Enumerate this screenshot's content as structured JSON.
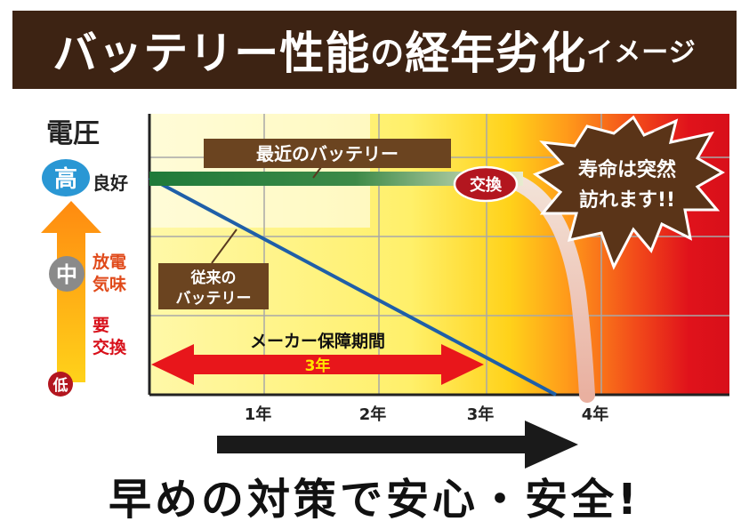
{
  "title": {
    "main": "バッテリー性能",
    "no": "の",
    "main2": "経年劣化",
    "suffix": "イメージ"
  },
  "yaxis": {
    "label": "電圧",
    "high": "高",
    "high_desc": "良好",
    "mid": "中",
    "mid_desc_1": "放電",
    "mid_desc_2": "気味",
    "low_desc_1": "要",
    "low_desc_2": "交換",
    "low": "低"
  },
  "labels": {
    "recent_battery": "最近のバッテリー",
    "old_battery_1": "従来の",
    "old_battery_2": "バッテリー",
    "replace": "交換",
    "warranty": "メーカー保障期間",
    "warranty_years": "3年",
    "callout_1": "寿命は突然",
    "callout_2": "訪れます!!"
  },
  "footer": "早めの対策で安心・安全!",
  "colors": {
    "title_bg": "#3d2313",
    "label_bg": "#6b4420",
    "recent_line": "#1f7a3a",
    "old_line": "#1f5fa8",
    "warranty_arrow": "#e8161b",
    "replace_badge": "#b3161f",
    "zone_good": "#fff8a8",
    "zone_danger": "#e0121b"
  },
  "chart_data": {
    "type": "line",
    "title": "バッテリー性能の経年劣化イメージ",
    "xlabel": "",
    "ylabel": "電圧",
    "x_ticks": [
      "1年",
      "2年",
      "3年",
      "4年"
    ],
    "xlim": [
      0,
      5
    ],
    "y_levels": [
      "低",
      "中",
      "高"
    ],
    "ylim": [
      0,
      3
    ],
    "series": [
      {
        "name": "最近のバッテリー",
        "points": [
          [
            0,
            2.6
          ],
          [
            2.6,
            2.6
          ],
          [
            3.1,
            2.45
          ],
          [
            3.5,
            1.5
          ],
          [
            3.8,
            0
          ]
        ]
      },
      {
        "name": "従来のバッテリー",
        "points": [
          [
            0,
            2.6
          ],
          [
            3.6,
            0
          ]
        ]
      }
    ],
    "annotations": [
      {
        "text": "メーカー保障期間 3年",
        "x_range": [
          0,
          3
        ]
      },
      {
        "text": "交換",
        "x": 2.85
      },
      {
        "text": "寿命は突然 訪れます!!",
        "x": 4.5
      }
    ]
  }
}
